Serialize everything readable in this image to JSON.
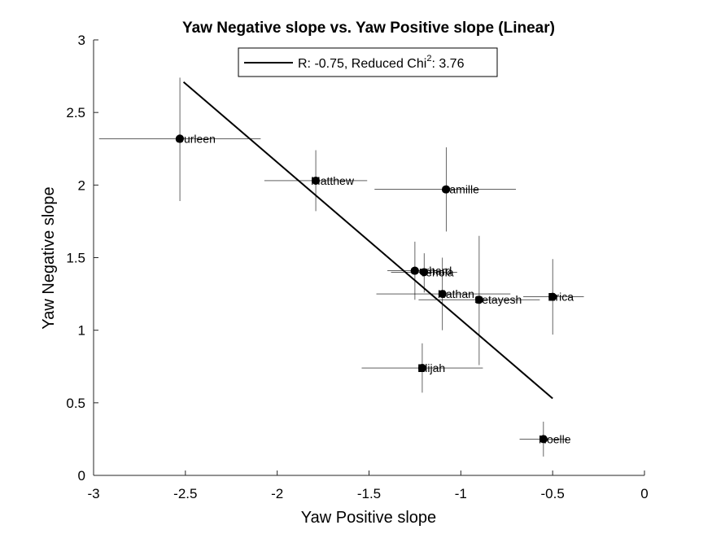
{
  "chart_data": {
    "type": "scatter",
    "title": "Yaw Negative slope vs. Yaw Positive slope (Linear)",
    "xlabel": "Yaw Positive slope",
    "ylabel": "Yaw Negative slope",
    "xlim": [
      -3,
      0
    ],
    "ylim": [
      0,
      3
    ],
    "xticks": [
      -3,
      -2.5,
      -2,
      -1.5,
      -1,
      -0.5,
      0
    ],
    "yticks": [
      0,
      0.5,
      1,
      1.5,
      2,
      2.5,
      3
    ],
    "xtick_labels": [
      "-3",
      "-2.5",
      "-2",
      "-1.5",
      "-1",
      "-0.5",
      "0"
    ],
    "ytick_labels": [
      "0",
      "0.5",
      "1",
      "1.5",
      "2",
      "2.5",
      "3"
    ],
    "grid": false,
    "legend": {
      "position": "top",
      "label_main": "R: -0.75, Reduced Chi",
      "label_sup": "2",
      "label_tail": ": 3.76"
    },
    "fit_line": {
      "x": [
        -2.51,
        -0.5
      ],
      "y": [
        2.71,
        0.53
      ]
    },
    "points": [
      {
        "label": "Gurleen",
        "x": -2.53,
        "y": 2.32,
        "xerr_low": 0.44,
        "xerr_high": 0.44,
        "yerr_low": 0.43,
        "yerr_high": 0.42
      },
      {
        "label": "Matthew",
        "x": -1.79,
        "y": 2.03,
        "xerr_low": 0.28,
        "xerr_high": 0.28,
        "yerr_low": 0.21,
        "yerr_high": 0.21
      },
      {
        "label": "Camille",
        "x": -1.08,
        "y": 1.97,
        "xerr_low": 0.39,
        "xerr_high": 0.38,
        "yerr_low": 0.29,
        "yerr_high": 0.29
      },
      {
        "label": "Gerhard",
        "x": -1.25,
        "y": 1.41,
        "xerr_low": 0.15,
        "xerr_high": 0.15,
        "yerr_low": 0.2,
        "yerr_high": 0.2
      },
      {
        "label": "Yehola",
        "x": -1.2,
        "y": 1.4,
        "xerr_low": 0.18,
        "xerr_high": 0.18,
        "yerr_low": 0.14,
        "yerr_high": 0.13
      },
      {
        "label": "Nathan",
        "x": -1.1,
        "y": 1.25,
        "xerr_low": 0.36,
        "xerr_high": 0.37,
        "yerr_low": 0.25,
        "yerr_high": 0.25
      },
      {
        "label": "Setayesh",
        "x": -0.9,
        "y": 1.21,
        "xerr_low": 0.33,
        "xerr_high": 0.33,
        "yerr_low": 0.45,
        "yerr_high": 0.44
      },
      {
        "label": "Erica",
        "x": -0.5,
        "y": 1.23,
        "xerr_low": 0.16,
        "xerr_high": 0.17,
        "yerr_low": 0.26,
        "yerr_high": 0.26
      },
      {
        "label": "Elijah",
        "x": -1.21,
        "y": 0.74,
        "xerr_low": 0.33,
        "xerr_high": 0.33,
        "yerr_low": 0.17,
        "yerr_high": 0.17
      },
      {
        "label": "Noelle",
        "x": -0.55,
        "y": 0.25,
        "xerr_low": 0.13,
        "xerr_high": 0.13,
        "yerr_low": 0.12,
        "yerr_high": 0.12
      }
    ]
  }
}
